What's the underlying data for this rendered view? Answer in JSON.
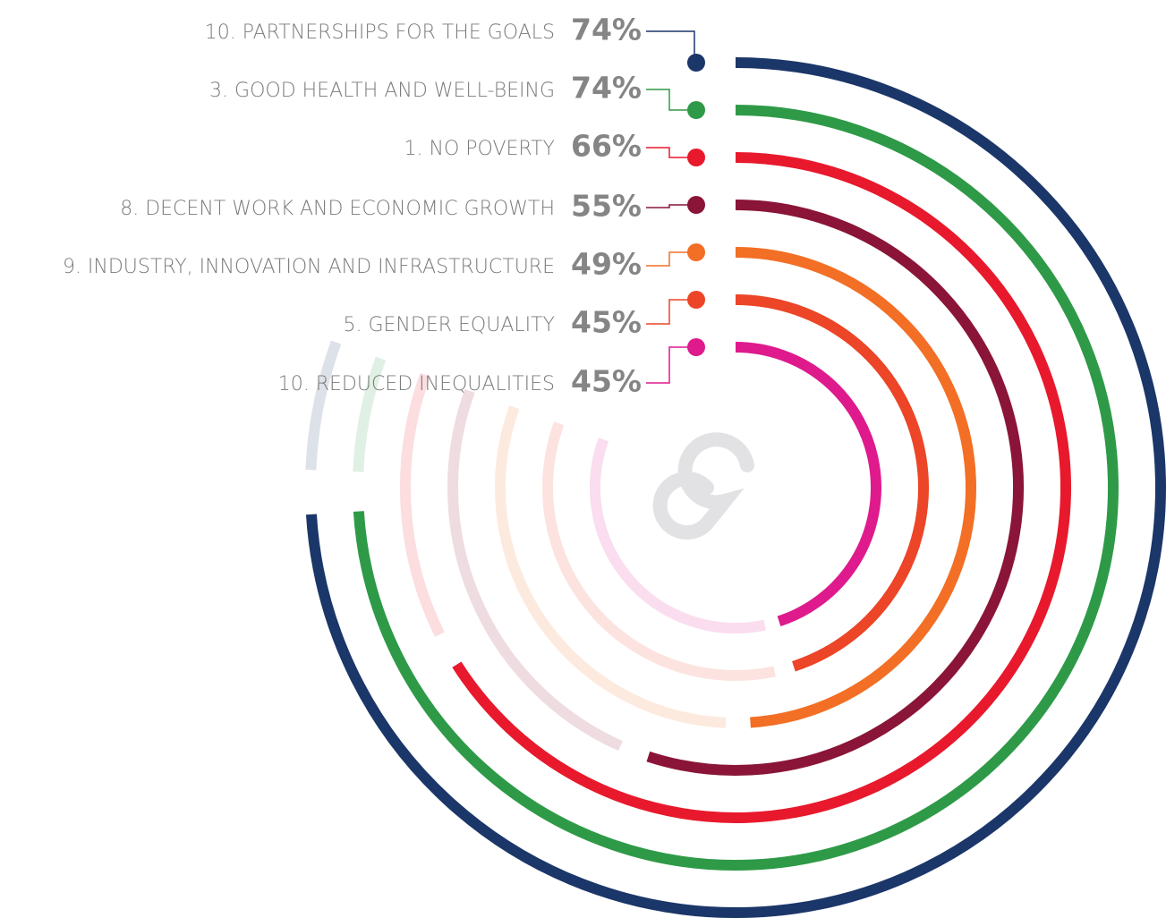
{
  "chart_data": {
    "type": "radial_bar",
    "categories": [
      "10. PARTNERSHIPS FOR THE GOALS",
      "3. GOOD HEALTH AND WELL-BEING",
      "1. NO POVERTY",
      "8. DECENT WORK AND ECONOMIC GROWTH",
      "9. INDUSTRY, INNOVATION AND INFRASTRUCTURE",
      "5. GENDER EQUALITY",
      "10. REDUCED INEQUALITIES"
    ],
    "values": [
      74,
      74,
      66,
      55,
      49,
      45,
      45
    ],
    "value_labels": [
      "74%",
      "74%",
      "66%",
      "55%",
      "49%",
      "45%",
      "45%"
    ],
    "colors": [
      "#1b3668",
      "#2e9a47",
      "#e8192c",
      "#8a1538",
      "#f26f25",
      "#ec4527",
      "#de1a8d"
    ],
    "xlim": [
      0,
      100
    ]
  }
}
